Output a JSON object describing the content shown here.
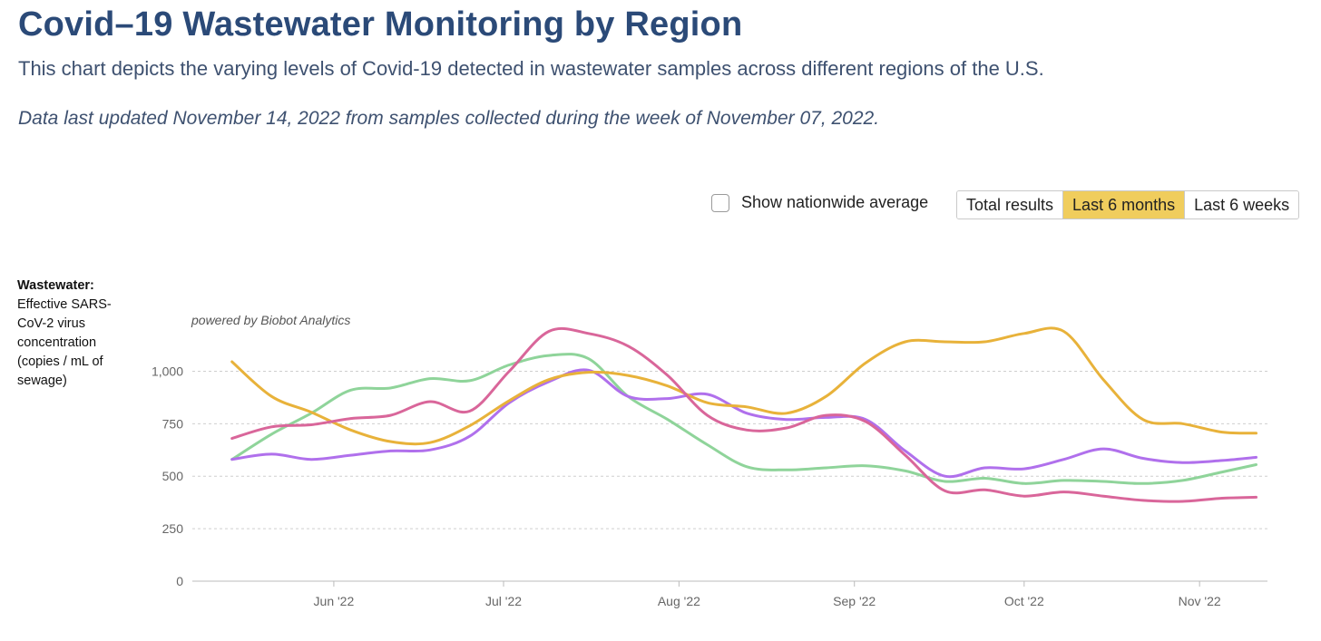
{
  "header": {
    "title": "Covid–19 Wastewater Monitoring by Region",
    "subtitle": "This chart depicts the varying levels of Covid-19 detected in wastewater samples across different regions of the U.S.",
    "updated": "Data last updated November 14, 2022 from samples collected during the week of November 07, 2022."
  },
  "controls": {
    "nationwide_label": "Show nationwide average",
    "nationwide_checked": false,
    "ranges": [
      "Total results",
      "Last 6 months",
      "Last 6 weeks"
    ],
    "active_range": "Last 6 months"
  },
  "yaxis": {
    "title_bold": "Wastewater:",
    "title_rest": "Effective SARS-CoV-2 virus concentration (copies / mL of sewage)"
  },
  "credit": "powered by Biobot Analytics",
  "chart_data": {
    "type": "line",
    "xlabel": "",
    "ylabel": "Wastewater: Effective SARS-CoV-2 virus concentration (copies / mL of sewage)",
    "x": [
      "2022-05-14",
      "2022-05-21",
      "2022-05-28",
      "2022-06-04",
      "2022-06-11",
      "2022-06-18",
      "2022-06-25",
      "2022-07-02",
      "2022-07-09",
      "2022-07-16",
      "2022-07-23",
      "2022-07-30",
      "2022-08-06",
      "2022-08-13",
      "2022-08-20",
      "2022-08-27",
      "2022-09-03",
      "2022-09-10",
      "2022-09-17",
      "2022-09-24",
      "2022-10-01",
      "2022-10-08",
      "2022-10-15",
      "2022-10-22",
      "2022-10-29",
      "2022-11-05",
      "2022-11-11"
    ],
    "x_ticks": [
      "Jun '22",
      "Jul '22",
      "Aug '22",
      "Sep '22",
      "Oct '22",
      "Nov '22"
    ],
    "x_tick_dates": [
      "2022-06-01",
      "2022-07-01",
      "2022-08-01",
      "2022-09-01",
      "2022-10-01",
      "2022-11-01"
    ],
    "x_range": [
      "2022-05-07",
      "2022-11-13"
    ],
    "ylim": [
      0,
      1300
    ],
    "y_ticks": [
      0,
      250,
      500,
      750,
      1000
    ],
    "grid": true,
    "grid_style": "dashed horizontal",
    "series": [
      {
        "color": "#e8b23a",
        "values": [
          1045,
          880,
          805,
          720,
          665,
          660,
          740,
          860,
          960,
          995,
          980,
          930,
          850,
          830,
          800,
          880,
          1040,
          1140,
          1140,
          1140,
          1180,
          1190,
          960,
          770,
          750,
          710,
          705
        ]
      },
      {
        "color": "#d9669a",
        "values": [
          680,
          735,
          745,
          775,
          790,
          855,
          810,
          1000,
          1190,
          1180,
          1120,
          980,
          790,
          720,
          730,
          790,
          760,
          600,
          430,
          435,
          405,
          425,
          405,
          385,
          380,
          395,
          400
        ]
      },
      {
        "color": "#8fd49a",
        "values": [
          580,
          700,
          800,
          910,
          920,
          965,
          955,
          1030,
          1075,
          1060,
          880,
          770,
          650,
          545,
          530,
          540,
          550,
          525,
          475,
          490,
          465,
          480,
          475,
          465,
          480,
          520,
          555
        ]
      },
      {
        "color": "#b070ec",
        "values": [
          580,
          605,
          580,
          600,
          620,
          625,
          690,
          850,
          950,
          1005,
          880,
          870,
          890,
          800,
          770,
          780,
          770,
          620,
          500,
          540,
          535,
          580,
          630,
          585,
          565,
          575,
          590
        ]
      }
    ]
  }
}
